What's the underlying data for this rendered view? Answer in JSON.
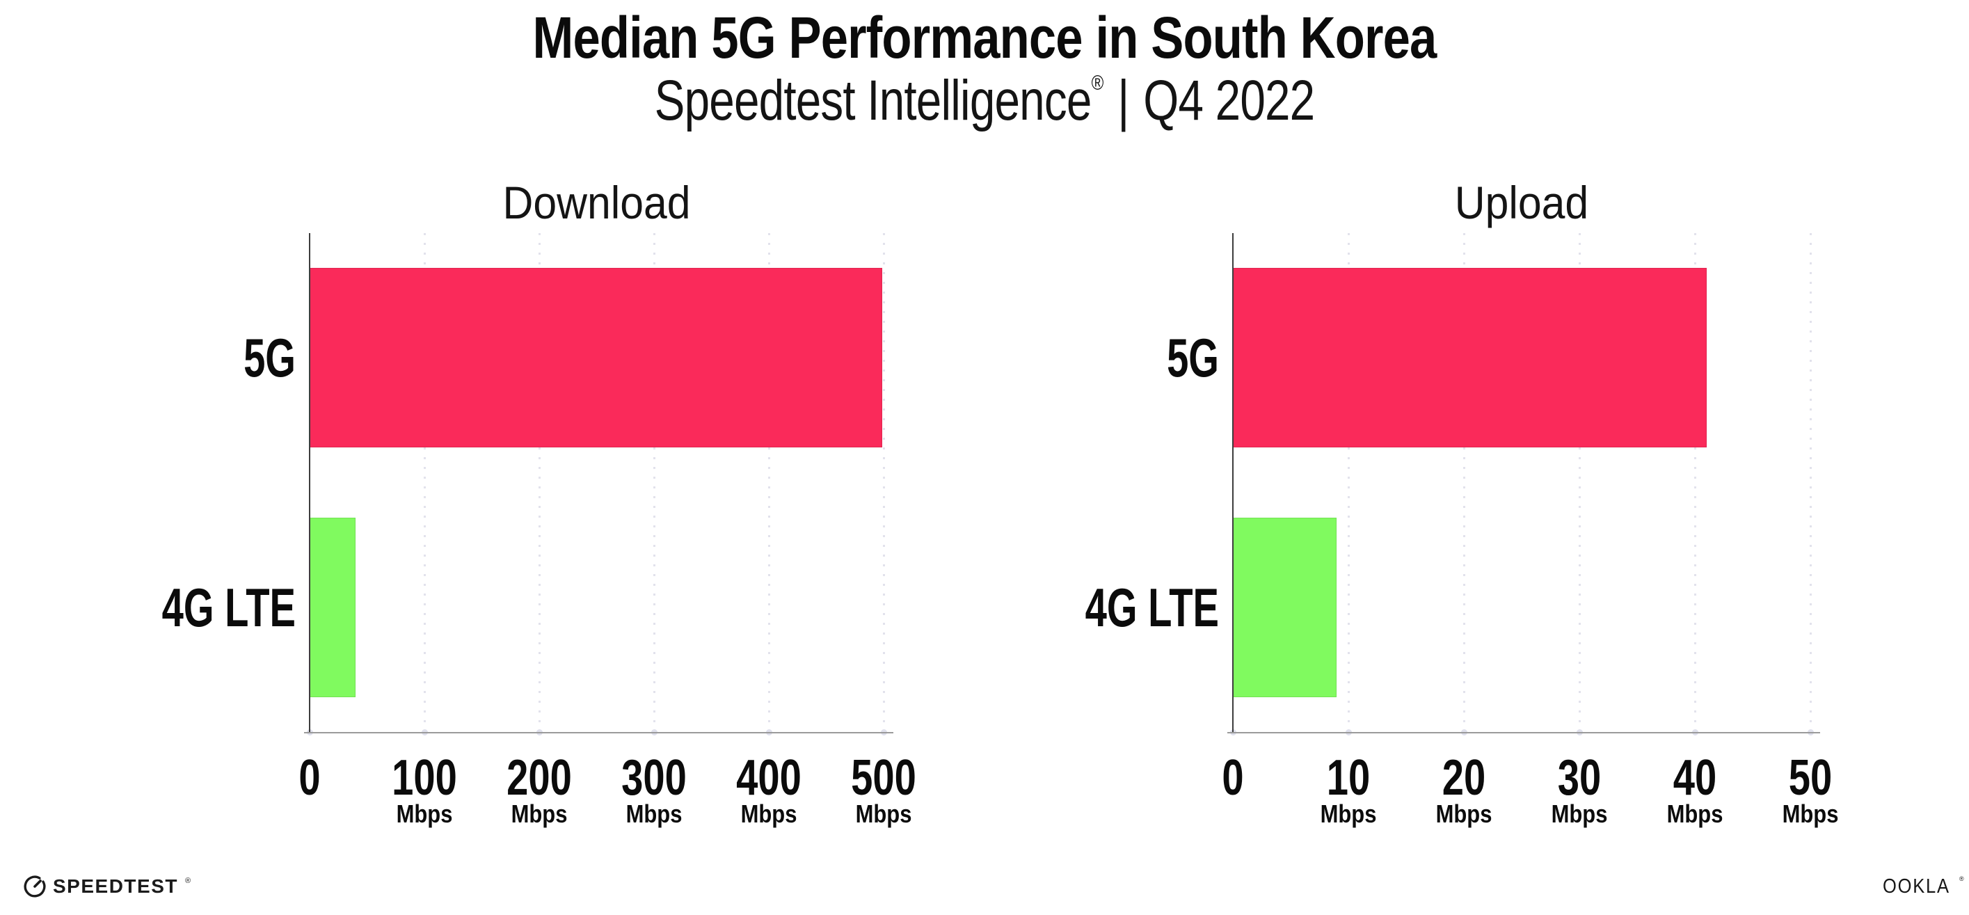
{
  "header": {
    "title": "Median 5G Performance in South Korea",
    "subtitle_brand": "Speedtest Intelligence",
    "subtitle_reg": "®",
    "subtitle_separator": "|",
    "subtitle_period": "Q4 2022"
  },
  "colors": {
    "bar_5g": "#fa2a5a",
    "bar_4g_lte": "#80fa5f",
    "gridline": "#e2e2ec",
    "grid_dot": "#dfe0ec",
    "y_axis": "#3d3d3d",
    "x_axis": "#9b9b9b",
    "text": "#0b0b0b"
  },
  "chart_data": [
    {
      "type": "bar",
      "orientation": "horizontal",
      "title": "Download",
      "categories": [
        "5G",
        "4G LTE"
      ],
      "values": [
        499,
        40
      ],
      "unit": "Mbps",
      "xlabel": "",
      "ylabel": "",
      "xlim": [
        0,
        500
      ],
      "x_ticks": [
        0,
        100,
        200,
        300,
        400,
        500
      ],
      "tick_unit_label": "Mbps",
      "bar_colors": [
        "#fa2a5a",
        "#80fa5f"
      ],
      "grid": "vertical-dotted",
      "legend": "none"
    },
    {
      "type": "bar",
      "orientation": "horizontal",
      "title": "Upload",
      "categories": [
        "5G",
        "4G LTE"
      ],
      "values": [
        41,
        9
      ],
      "unit": "Mbps",
      "xlabel": "",
      "ylabel": "",
      "xlim": [
        0,
        50
      ],
      "x_ticks": [
        0,
        10,
        20,
        30,
        40,
        50
      ],
      "tick_unit_label": "Mbps",
      "bar_colors": [
        "#fa2a5a",
        "#80fa5f"
      ],
      "grid": "vertical-dotted",
      "legend": "none"
    }
  ],
  "footer": {
    "speedtest_logo_text": "SPEEDTEST",
    "speedtest_reg": "®",
    "ookla_logo_text": "OOKLA",
    "ookla_reg": "®"
  }
}
